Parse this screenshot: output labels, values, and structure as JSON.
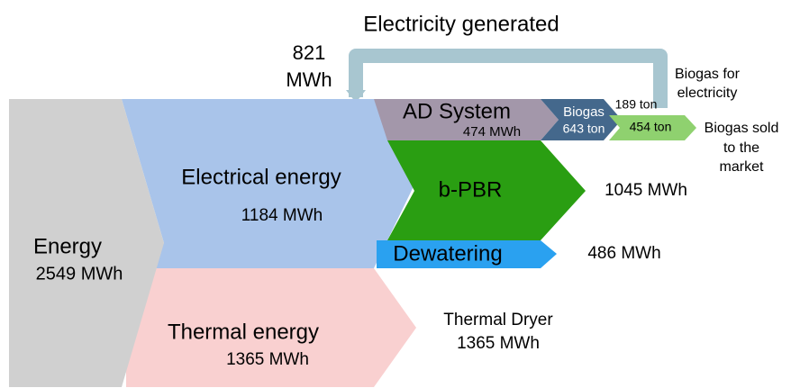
{
  "title": "Electricity generated",
  "loop": {
    "lines": [
      "821",
      "MWh"
    ]
  },
  "nodes": [
    {
      "label": "Energy",
      "value": "2549 MWh"
    },
    {
      "label": "Electrical energy",
      "value": "1184 MWh"
    },
    {
      "label": "Thermal energy",
      "value": "1365 MWh"
    },
    {
      "label": "AD System",
      "value": "474 MWh"
    },
    {
      "label": "b-PBR",
      "value": "1045 MWh"
    },
    {
      "label": "Dewatering",
      "value": "486 MWh"
    },
    {
      "label": "Thermal Dryer",
      "value": "1365 MWh"
    },
    {
      "label": "Biogas",
      "value": "643 ton"
    }
  ],
  "outputs": [
    {
      "lines": [
        "Biogas for",
        "electricity"
      ],
      "value": "189 ton"
    },
    {
      "lines": [
        "Biogas sold",
        "to the",
        "market"
      ],
      "value": "454 ton"
    }
  ]
}
